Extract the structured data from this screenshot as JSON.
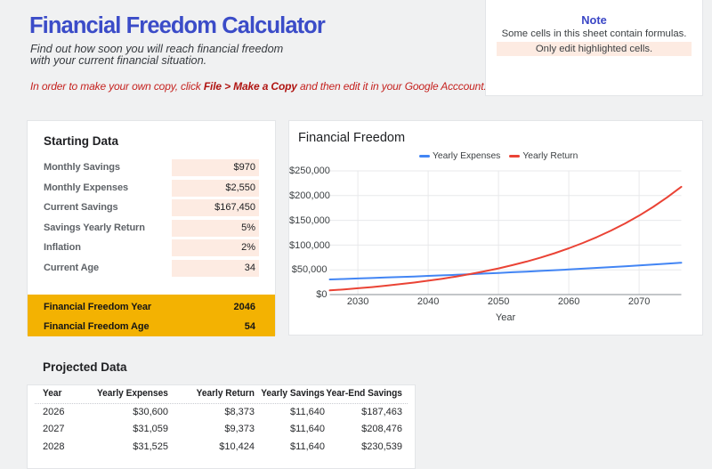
{
  "header": {
    "title": "Financial Freedom Calculator",
    "subtitle": "Find out how soon you will reach financial freedom with your current financial situation.",
    "copy_note_prefix": "In order to make your own copy, click ",
    "copy_note_bold": "File > Make a Copy",
    "copy_note_suffix": " and then edit it in your Google Acccount."
  },
  "note_box": {
    "title": "Note",
    "line1": "Some cells in this sheet contain formulas.",
    "line2": "Only edit highlighted cells."
  },
  "starting_data": {
    "title": "Starting Data",
    "rows": [
      {
        "label": "Monthly Savings",
        "value": "$970"
      },
      {
        "label": "Monthly Expenses",
        "value": "$2,550"
      },
      {
        "label": "Current Savings",
        "value": "$167,450"
      },
      {
        "label": "Savings Yearly Return",
        "value": "5%"
      },
      {
        "label": "Inflation",
        "value": "2%"
      },
      {
        "label": "Current Age",
        "value": "34"
      }
    ],
    "highlights": [
      {
        "label": "Financial Freedom Year",
        "value": "2046"
      },
      {
        "label": "Financial Freedom Age",
        "value": "54"
      }
    ]
  },
  "chart_data": {
    "type": "line",
    "title": "Financial Freedom",
    "xlabel": "Year",
    "ylabel": "",
    "xlim": [
      2026,
      2076
    ],
    "ylim": [
      0,
      250000
    ],
    "grid": true,
    "legend_position": "top",
    "yticks": [
      "$0",
      "$50,000",
      "$100,000",
      "$150,000",
      "$200,000",
      "$250,000"
    ],
    "xticks": [
      "2030",
      "2040",
      "2050",
      "2060",
      "2070"
    ],
    "x": [
      2026,
      2028,
      2030,
      2032,
      2034,
      2036,
      2038,
      2040,
      2042,
      2044,
      2046,
      2048,
      2050,
      2052,
      2054,
      2056,
      2058,
      2060,
      2062,
      2064,
      2066,
      2068,
      2070,
      2072,
      2074,
      2076
    ],
    "series": [
      {
        "name": "Yearly Expenses",
        "color": "#4285f4",
        "values": [
          30600,
          31525,
          32478,
          33459,
          34471,
          35513,
          36586,
          37692,
          38831,
          40005,
          41214,
          42459,
          43743,
          45065,
          46427,
          47830,
          49276,
          50766,
          52301,
          53882,
          55510,
          57188,
          58916,
          60696,
          62530,
          64420
        ]
      },
      {
        "name": "Yearly Return",
        "color": "#ea4335",
        "values": [
          8373,
          10424,
          12685,
          15179,
          17928,
          20958,
          24300,
          27983,
          32045,
          36522,
          41459,
          46902,
          52902,
          59518,
          66812,
          74853,
          83716,
          93493,
          104269,
          116149,
          129248,
          143689,
          159622,
          177163,
          196515,
          217851
        ]
      }
    ]
  },
  "projected": {
    "title": "Projected Data",
    "columns": [
      "Year",
      "Yearly Expenses",
      "Yearly Return",
      "Yearly Savings",
      "Year-End Savings"
    ],
    "rows": [
      [
        "2026",
        "$30,600",
        "$8,373",
        "$11,640",
        "$187,463"
      ],
      [
        "2027",
        "$31,059",
        "$9,373",
        "$11,640",
        "$208,476"
      ],
      [
        "2028",
        "$31,525",
        "$10,424",
        "$11,640",
        "$230,539"
      ]
    ]
  },
  "colors": {
    "accent_blue": "#3b4cc8",
    "alert_red": "#c5221f",
    "highlight_peach": "#fdebe2",
    "highlight_yellow": "#f3b202",
    "series_blue": "#4285f4",
    "series_red": "#ea4335"
  }
}
